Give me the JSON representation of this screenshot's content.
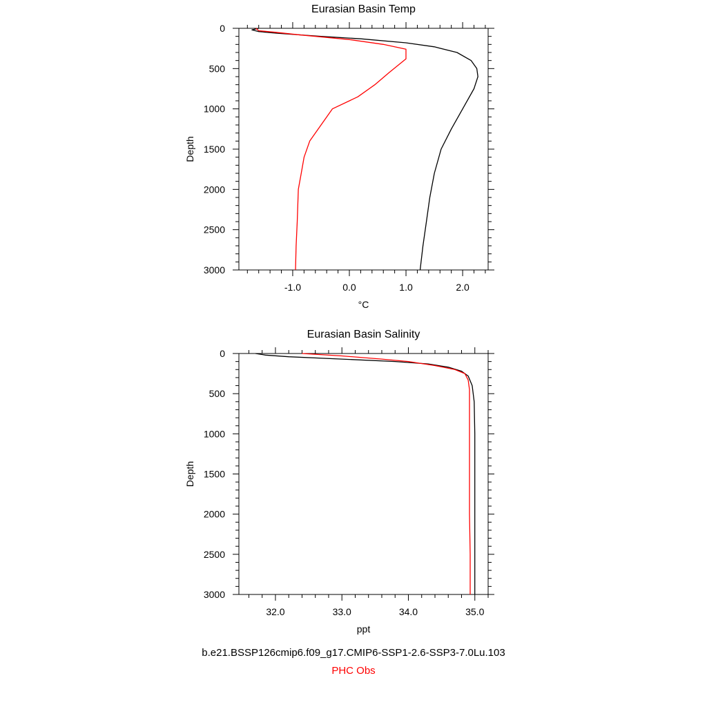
{
  "chart_data": [
    {
      "type": "line",
      "title": "Eurasian Basin Temp",
      "xlabel": "°C",
      "ylabel": "Depth",
      "xlim": [
        -1.95,
        2.45
      ],
      "ylim": [
        3000,
        0
      ],
      "y_inverted": true,
      "xticks": [
        -1.0,
        0.0,
        1.0,
        2.0
      ],
      "xtick_labels": [
        "-1.0",
        "0.0",
        "1.0",
        "2.0"
      ],
      "yticks": [
        0,
        500,
        1000,
        1500,
        2000,
        2500,
        3000
      ],
      "ytick_labels": [
        "0",
        "500",
        "1000",
        "1500",
        "2000",
        "2500",
        "3000"
      ],
      "grid": false,
      "series": [
        {
          "name": "b.e21.BSSP126cmip6.f09_g17.CMIP6-SSP1-2.6-SSP3-7.0Lu.103",
          "color": "#000000",
          "points": [
            [
              -1.6,
              0
            ],
            [
              -1.72,
              20
            ],
            [
              -1.6,
              40
            ],
            [
              -1.3,
              60
            ],
            [
              -0.5,
              100
            ],
            [
              0.2,
              130
            ],
            [
              1.0,
              180
            ],
            [
              1.5,
              230
            ],
            [
              1.9,
              300
            ],
            [
              2.15,
              400
            ],
            [
              2.25,
              500
            ],
            [
              2.27,
              600
            ],
            [
              2.2,
              750
            ],
            [
              2.0,
              1000
            ],
            [
              1.8,
              1250
            ],
            [
              1.62,
              1500
            ],
            [
              1.5,
              1800
            ],
            [
              1.42,
              2100
            ],
            [
              1.36,
              2400
            ],
            [
              1.3,
              2700
            ],
            [
              1.25,
              3000
            ]
          ]
        },
        {
          "name": "PHC Obs",
          "color": "#ff0000",
          "points": [
            [
              -1.65,
              0
            ],
            [
              -1.6,
              30
            ],
            [
              -1.3,
              50
            ],
            [
              -0.9,
              80
            ],
            [
              0.0,
              140
            ],
            [
              0.6,
              200
            ],
            [
              1.0,
              260
            ],
            [
              1.0,
              380
            ],
            [
              0.7,
              550
            ],
            [
              0.45,
              700
            ],
            [
              0.15,
              850
            ],
            [
              -0.3,
              1000
            ],
            [
              -0.5,
              1200
            ],
            [
              -0.7,
              1400
            ],
            [
              -0.8,
              1600
            ],
            [
              -0.85,
              1800
            ],
            [
              -0.9,
              2000
            ],
            [
              -0.92,
              2400
            ],
            [
              -0.94,
              2700
            ],
            [
              -0.95,
              3000
            ]
          ]
        }
      ]
    },
    {
      "type": "line",
      "title": "Eurasian Basin Salinity",
      "xlabel": "ppt",
      "ylabel": "Depth",
      "xlim": [
        31.45,
        35.2
      ],
      "ylim": [
        3000,
        0
      ],
      "y_inverted": true,
      "xticks": [
        32.0,
        33.0,
        34.0,
        35.0
      ],
      "xtick_labels": [
        "32.0",
        "33.0",
        "34.0",
        "35.0"
      ],
      "yticks": [
        0,
        500,
        1000,
        1500,
        2000,
        2500,
        3000
      ],
      "ytick_labels": [
        "0",
        "500",
        "1000",
        "1500",
        "2000",
        "2500",
        "3000"
      ],
      "grid": false,
      "series": [
        {
          "name": "b.e21.BSSP126cmip6.f09_g17.CMIP6-SSP1-2.6-SSP3-7.0Lu.103",
          "color": "#000000",
          "points": [
            [
              31.7,
              0
            ],
            [
              31.85,
              20
            ],
            [
              32.2,
              40
            ],
            [
              33.0,
              70
            ],
            [
              33.8,
              100
            ],
            [
              34.3,
              130
            ],
            [
              34.6,
              170
            ],
            [
              34.8,
              220
            ],
            [
              34.9,
              280
            ],
            [
              34.96,
              400
            ],
            [
              34.99,
              600
            ],
            [
              35.0,
              1000
            ],
            [
              35.0,
              1500
            ],
            [
              35.0,
              2000
            ],
            [
              35.0,
              2500
            ],
            [
              35.0,
              3000
            ]
          ]
        },
        {
          "name": "PHC Obs",
          "color": "#ff0000",
          "points": [
            [
              32.4,
              0
            ],
            [
              33.0,
              30
            ],
            [
              33.6,
              70
            ],
            [
              34.0,
              100
            ],
            [
              34.4,
              150
            ],
            [
              34.7,
              200
            ],
            [
              34.85,
              250
            ],
            [
              34.9,
              330
            ],
            [
              34.92,
              450
            ],
            [
              34.92,
              800
            ],
            [
              34.92,
              1500
            ],
            [
              34.92,
              2000
            ],
            [
              34.93,
              2500
            ],
            [
              34.93,
              3000
            ]
          ]
        }
      ]
    }
  ],
  "legend": {
    "entries": [
      {
        "label": "b.e21.BSSP126cmip6.f09_g17.CMIP6-SSP1-2.6-SSP3-7.0Lu.103",
        "color": "#000000"
      },
      {
        "label": "PHC Obs",
        "color": "#ff0000"
      }
    ],
    "placement": "bottom-center"
  }
}
